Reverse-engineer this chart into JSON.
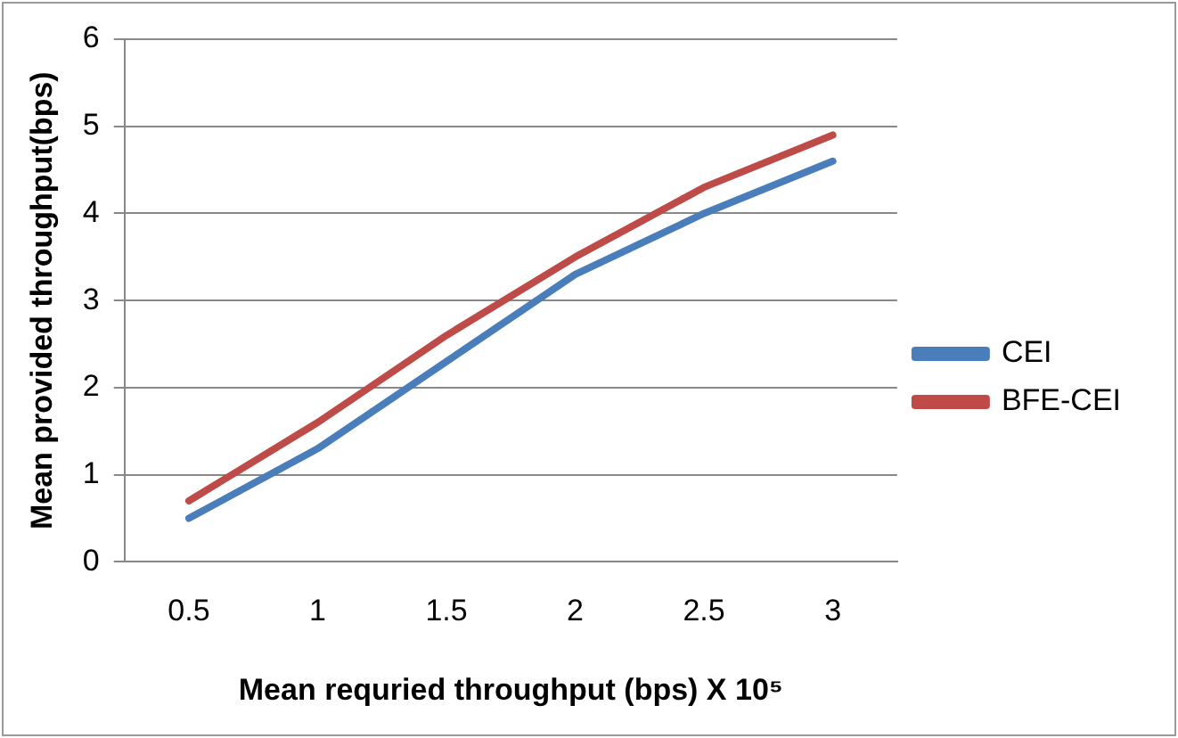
{
  "chart_data": {
    "type": "line",
    "xlabel": "Mean requried throughput (bps) X 10⁵",
    "ylabel": "Mean provided throughput(bps)",
    "categories": [
      "0.5",
      "1",
      "1.5",
      "2",
      "2.5",
      "3"
    ],
    "series": [
      {
        "name": "CEI",
        "color": "#4a7ebb",
        "values": [
          0.5,
          1.3,
          2.3,
          3.3,
          4.0,
          4.6
        ]
      },
      {
        "name": "BFE-CEI",
        "color": "#be4b48",
        "values": [
          0.7,
          1.6,
          2.6,
          3.5,
          4.3,
          4.9
        ]
      }
    ],
    "ylim": [
      0,
      6
    ],
    "yticks": [
      0,
      1,
      2,
      3,
      4,
      5,
      6
    ],
    "grid": "y",
    "legend": "right",
    "marker": "none",
    "line_style": "solid"
  }
}
